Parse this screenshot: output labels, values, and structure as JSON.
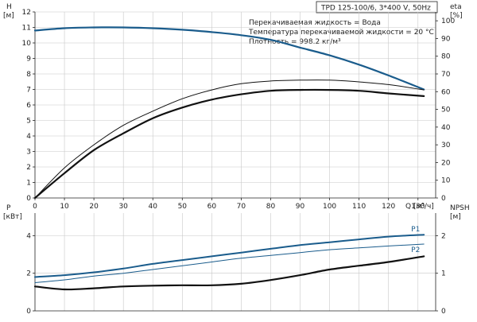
{
  "badge": "TPD 125-100/6, 3*400 V, 50Hz",
  "info_lines": [
    "Перекачиваемая жидкость = Вода",
    "Температура перекачиваемой жидкости = 20 °C",
    "Плотность = 998.2 кг/м³"
  ],
  "colors": {
    "blue": "#1a5c8c",
    "black": "#111111",
    "grid": "#c8c8c8"
  },
  "chart_data": [
    {
      "type": "line",
      "name": "head-efficiency",
      "y_left": {
        "label": "H",
        "unit": "[м]",
        "range": [
          0,
          12
        ],
        "ticks": [
          0,
          1,
          2,
          3,
          4,
          5,
          6,
          7,
          8,
          9,
          10,
          11,
          12
        ]
      },
      "y_right": {
        "label": "eta",
        "unit": "[%]",
        "range": [
          0,
          105
        ],
        "ticks": [
          0,
          10,
          20,
          30,
          40,
          50,
          60,
          70,
          80,
          90,
          100
        ]
      },
      "x": {
        "label": "Q",
        "unit": "[м³/ч]",
        "range": [
          0,
          136
        ],
        "ticks": [
          0,
          10,
          20,
          30,
          40,
          50,
          60,
          70,
          80,
          90,
          100,
          110,
          120,
          130
        ]
      },
      "grid": true,
      "series": [
        {
          "id": "head",
          "axis": "left",
          "color": "#1a5c8c",
          "width": 2.2,
          "points": [
            [
              0,
              10.8
            ],
            [
              10,
              10.95
            ],
            [
              20,
              11.0
            ],
            [
              30,
              11.0
            ],
            [
              40,
              10.95
            ],
            [
              50,
              10.85
            ],
            [
              60,
              10.7
            ],
            [
              70,
              10.5
            ],
            [
              80,
              10.2
            ],
            [
              90,
              9.7
            ],
            [
              100,
              9.2
            ],
            [
              110,
              8.6
            ],
            [
              120,
              7.9
            ],
            [
              132,
              7.0
            ]
          ]
        },
        {
          "id": "eta-thin",
          "axis": "right",
          "color": "#111111",
          "width": 1.0,
          "points": [
            [
              0,
              0
            ],
            [
              10,
              17
            ],
            [
              20,
              30
            ],
            [
              30,
              41
            ],
            [
              40,
              49
            ],
            [
              50,
              56
            ],
            [
              60,
              61
            ],
            [
              70,
              64.5
            ],
            [
              80,
              66
            ],
            [
              90,
              66.5
            ],
            [
              100,
              66.5
            ],
            [
              110,
              65.5
            ],
            [
              120,
              64
            ],
            [
              132,
              61
            ]
          ]
        },
        {
          "id": "eta-thick",
          "axis": "right",
          "color": "#111111",
          "width": 2.2,
          "points": [
            [
              0,
              0
            ],
            [
              10,
              14
            ],
            [
              20,
              27
            ],
            [
              30,
              36.5
            ],
            [
              40,
              45
            ],
            [
              50,
              51
            ],
            [
              60,
              55.5
            ],
            [
              70,
              58.5
            ],
            [
              80,
              60.5
            ],
            [
              90,
              61
            ],
            [
              100,
              61
            ],
            [
              110,
              60.5
            ],
            [
              120,
              59
            ],
            [
              132,
              57.5
            ]
          ]
        }
      ]
    },
    {
      "type": "line",
      "name": "power-npsh",
      "y_left": {
        "label": "P",
        "unit": "[кВт]",
        "range": [
          0,
          5.2
        ],
        "ticks": [
          0,
          2,
          4
        ]
      },
      "y_right": {
        "label": "NPSH",
        "unit": "[м]",
        "range": [
          0,
          2.6
        ],
        "ticks": [
          0,
          1,
          2
        ]
      },
      "x": {
        "range": [
          0,
          136
        ]
      },
      "grid": true,
      "series": [
        {
          "id": "P1",
          "name": "P1",
          "axis": "left",
          "color": "#1a5c8c",
          "width": 2.0,
          "points": [
            [
              0,
              1.8
            ],
            [
              10,
              1.9
            ],
            [
              20,
              2.05
            ],
            [
              30,
              2.25
            ],
            [
              40,
              2.5
            ],
            [
              50,
              2.7
            ],
            [
              60,
              2.9
            ],
            [
              70,
              3.1
            ],
            [
              80,
              3.3
            ],
            [
              90,
              3.5
            ],
            [
              100,
              3.65
            ],
            [
              110,
              3.8
            ],
            [
              120,
              3.95
            ],
            [
              132,
              4.05
            ]
          ]
        },
        {
          "id": "P2",
          "name": "P2",
          "axis": "left",
          "color": "#1a5c8c",
          "width": 1.0,
          "points": [
            [
              0,
              1.5
            ],
            [
              10,
              1.65
            ],
            [
              20,
              1.85
            ],
            [
              30,
              2.0
            ],
            [
              40,
              2.2
            ],
            [
              50,
              2.4
            ],
            [
              60,
              2.6
            ],
            [
              70,
              2.8
            ],
            [
              80,
              2.95
            ],
            [
              90,
              3.1
            ],
            [
              100,
              3.25
            ],
            [
              110,
              3.35
            ],
            [
              120,
              3.45
            ],
            [
              132,
              3.55
            ]
          ]
        },
        {
          "id": "NPSH",
          "axis": "right",
          "color": "#111111",
          "width": 2.2,
          "points": [
            [
              0,
              0.65
            ],
            [
              10,
              0.57
            ],
            [
              20,
              0.6
            ],
            [
              30,
              0.65
            ],
            [
              40,
              0.67
            ],
            [
              50,
              0.68
            ],
            [
              60,
              0.68
            ],
            [
              70,
              0.72
            ],
            [
              80,
              0.82
            ],
            [
              90,
              0.95
            ],
            [
              100,
              1.1
            ],
            [
              110,
              1.2
            ],
            [
              120,
              1.3
            ],
            [
              132,
              1.45
            ]
          ]
        }
      ]
    }
  ]
}
